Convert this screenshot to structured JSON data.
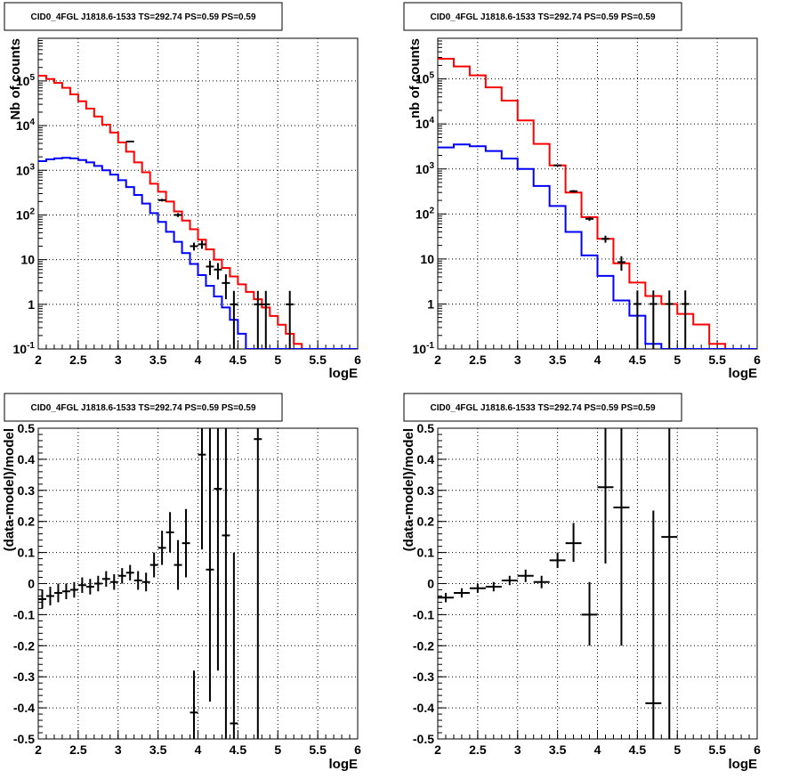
{
  "panels": [
    {
      "title": "CID0_4FGL J1818.6-1533 TS=292.74 PS=0.59 PS=0.59",
      "xlabel": "logE",
      "ylabel": "Nb of counts"
    },
    {
      "title": "CID0_4FGL J1818.6-1533 TS=292.74 PS=0.59 PS=0.59",
      "xlabel": "logE",
      "ylabel": "nb of counts"
    },
    {
      "title": "CID0_4FGL J1818.6-1533 TS=292.74 PS=0.59 PS=0.59",
      "xlabel": "logE",
      "ylabel": "(data-model)/model"
    },
    {
      "title": "CID0_4FGL J1818.6-1533 TS=292.74 PS=0.59 PS=0.59",
      "xlabel": "logE",
      "ylabel": "(data-model)/model"
    }
  ],
  "colors": {
    "total_model": "#ff0000",
    "component_model": "#0000ff",
    "data": "#000000",
    "grid": "#000000"
  },
  "chart_data": [
    {
      "type": "line",
      "title": "CID0_4FGL J1818.6-1533 TS=292.74 PS=0.59 PS=0.59",
      "xlabel": "logE",
      "ylabel": "Nb of counts",
      "xlim": [
        2,
        6
      ],
      "ylim": [
        0.1,
        900000
      ],
      "yscale": "log",
      "grid": true,
      "x_ticks": [
        "2",
        "2.5",
        "3",
        "3.5",
        "4",
        "4.5",
        "5",
        "5.5",
        "6"
      ],
      "y_ticks": [
        "10^-1",
        "1",
        "10",
        "10^2",
        "10^3",
        "10^4",
        "10^5"
      ],
      "bin_edges": [
        2.0,
        2.1,
        2.2,
        2.3,
        2.4,
        2.5,
        2.6,
        2.7,
        2.8,
        2.9,
        3.0,
        3.1,
        3.2,
        3.3,
        3.4,
        3.5,
        3.6,
        3.7,
        3.8,
        3.9,
        4.0,
        4.1,
        4.2,
        4.3,
        4.4,
        4.5,
        4.6,
        4.7,
        4.8,
        4.9,
        5.0,
        5.1,
        5.2,
        5.3,
        5.4,
        5.5,
        5.6,
        5.7,
        5.8,
        5.9,
        6.0
      ],
      "series": [
        {
          "style": "step",
          "color": "red",
          "values": [
            130000,
            110000,
            90000,
            70000,
            50000,
            35000,
            24000,
            16000,
            10500,
            7000,
            4200,
            2600,
            1500,
            900,
            500,
            330,
            200,
            120,
            75,
            48,
            28,
            17,
            10,
            6.5,
            4.2,
            2.8,
            1.9,
            1.3,
            0.85,
            0.55,
            0.35,
            0.22,
            0.13,
            0.1,
            0.1,
            0.1,
            0.1,
            0.1,
            0.1,
            0.1
          ]
        },
        {
          "style": "step",
          "color": "blue",
          "values": [
            1600,
            1750,
            1850,
            1900,
            1850,
            1700,
            1500,
            1250,
            1000,
            800,
            600,
            420,
            280,
            180,
            110,
            70,
            42,
            25,
            14,
            8,
            4.5,
            2.6,
            1.5,
            0.85,
            0.45,
            0.22,
            0.1,
            0.1,
            0.1,
            0.1,
            0.1,
            0.1,
            0.1,
            0.1,
            0.1,
            0.1,
            0.1,
            0.1,
            0.1,
            0.1
          ]
        },
        {
          "style": "errorbar",
          "color": "black",
          "points": [
            {
              "x": 3.15,
              "y": 4400,
              "lo": 4260,
              "hi": 4540
            },
            {
              "x": 3.55,
              "y": 215,
              "lo": 200,
              "hi": 230
            },
            {
              "x": 3.75,
              "y": 100,
              "lo": 90,
              "hi": 110
            },
            {
              "x": 3.95,
              "y": 20,
              "lo": 16,
              "hi": 24
            },
            {
              "x": 4.05,
              "y": 22,
              "lo": 17.5,
              "hi": 26.5
            },
            {
              "x": 4.15,
              "y": 7,
              "lo": 4.5,
              "hi": 9.5
            },
            {
              "x": 4.25,
              "y": 6,
              "lo": 3.6,
              "hi": 8.4
            },
            {
              "x": 4.35,
              "y": 3,
              "lo": 1.3,
              "hi": 4.7
            },
            {
              "x": 4.45,
              "y": 1,
              "lo": 0.1,
              "hi": 2
            },
            {
              "x": 4.75,
              "y": 1,
              "lo": 0.1,
              "hi": 2
            },
            {
              "x": 4.85,
              "y": 1,
              "lo": 0.1,
              "hi": 2
            },
            {
              "x": 5.15,
              "y": 1,
              "lo": 0.1,
              "hi": 2
            }
          ]
        }
      ]
    },
    {
      "type": "line",
      "title": "CID0_4FGL J1818.6-1533 TS=292.74 PS=0.59 PS=0.59",
      "xlabel": "logE",
      "ylabel": "nb of counts",
      "xlim": [
        2,
        6
      ],
      "ylim": [
        0.1,
        800000
      ],
      "yscale": "log",
      "grid": true,
      "x_ticks": [
        "2",
        "2.5",
        "3",
        "3.5",
        "4",
        "4.5",
        "5",
        "5.5",
        "6"
      ],
      "y_ticks": [
        "10^-1",
        "1",
        "10",
        "10^2",
        "10^3",
        "10^4",
        "10^5"
      ],
      "bin_edges": [
        2.0,
        2.2,
        2.4,
        2.6,
        2.8,
        3.0,
        3.2,
        3.4,
        3.6,
        3.8,
        4.0,
        4.2,
        4.4,
        4.6,
        4.8,
        5.0,
        5.2,
        5.4,
        5.6,
        5.8,
        6.0
      ],
      "series": [
        {
          "style": "step",
          "color": "red",
          "values": [
            280000,
            190000,
            120000,
            65000,
            33000,
            12000,
            3600,
            1200,
            300,
            85,
            28,
            8,
            3,
            1.5,
            1.0,
            0.6,
            0.35,
            0.13,
            0.1,
            0.1
          ]
        },
        {
          "style": "step",
          "color": "blue",
          "values": [
            3000,
            3500,
            3200,
            2500,
            1700,
            1000,
            420,
            150,
            40,
            12,
            4.2,
            1.2,
            0.55,
            0.13,
            0.1,
            0.1,
            0.1,
            0.1,
            0.1,
            0.1
          ]
        },
        {
          "style": "errorbar",
          "color": "black",
          "points": [
            {
              "x": 3.5,
              "y": 1200,
              "lo": 1160,
              "hi": 1240
            },
            {
              "x": 3.7,
              "y": 320,
              "lo": 300,
              "hi": 340
            },
            {
              "x": 3.9,
              "y": 78,
              "lo": 70,
              "hi": 86
            },
            {
              "x": 4.1,
              "y": 28,
              "lo": 23,
              "hi": 33
            },
            {
              "x": 4.3,
              "y": 8.5,
              "lo": 5.5,
              "hi": 11.5
            },
            {
              "x": 4.5,
              "y": 1,
              "lo": 0.1,
              "hi": 2
            },
            {
              "x": 4.7,
              "y": 1,
              "lo": 0.1,
              "hi": 2
            },
            {
              "x": 4.9,
              "y": 1,
              "lo": 0.1,
              "hi": 2
            },
            {
              "x": 5.1,
              "y": 1,
              "lo": 0.1,
              "hi": 2
            }
          ]
        }
      ]
    },
    {
      "type": "scatter",
      "title": "CID0_4FGL J1818.6-1533 TS=292.74 PS=0.59 PS=0.59",
      "xlabel": "logE",
      "ylabel": "(data-model)/model",
      "xlim": [
        2,
        6
      ],
      "ylim": [
        -0.5,
        0.5
      ],
      "grid": true,
      "x_ticks": [
        "2",
        "2.5",
        "3",
        "3.5",
        "4",
        "4.5",
        "5",
        "5.5",
        "6"
      ],
      "y_ticks": [
        "-0.5",
        "-0.4",
        "-0.3",
        "-0.2",
        "-0.1",
        "0",
        "0.1",
        "0.2",
        "0.3",
        "0.4",
        "0.5"
      ],
      "bin_width": 0.1,
      "points": [
        {
          "x": 2.05,
          "y": -0.05,
          "lo": -0.08,
          "hi": -0.02
        },
        {
          "x": 2.15,
          "y": -0.04,
          "lo": -0.07,
          "hi": -0.01
        },
        {
          "x": 2.25,
          "y": -0.03,
          "lo": -0.06,
          "hi": 0.0
        },
        {
          "x": 2.35,
          "y": -0.025,
          "lo": -0.05,
          "hi": 0.0
        },
        {
          "x": 2.45,
          "y": -0.02,
          "lo": -0.045,
          "hi": 0.005
        },
        {
          "x": 2.55,
          "y": -0.005,
          "lo": -0.03,
          "hi": 0.02
        },
        {
          "x": 2.65,
          "y": -0.01,
          "lo": -0.035,
          "hi": 0.015
        },
        {
          "x": 2.75,
          "y": 0.0,
          "lo": -0.025,
          "hi": 0.025
        },
        {
          "x": 2.85,
          "y": 0.015,
          "lo": -0.01,
          "hi": 0.04
        },
        {
          "x": 2.95,
          "y": 0.005,
          "lo": -0.02,
          "hi": 0.03
        },
        {
          "x": 3.05,
          "y": 0.025,
          "lo": 0.0,
          "hi": 0.05
        },
        {
          "x": 3.15,
          "y": 0.035,
          "lo": 0.01,
          "hi": 0.06
        },
        {
          "x": 3.25,
          "y": 0.01,
          "lo": -0.02,
          "hi": 0.04
        },
        {
          "x": 3.35,
          "y": 0.005,
          "lo": -0.025,
          "hi": 0.035
        },
        {
          "x": 3.45,
          "y": 0.06,
          "lo": 0.02,
          "hi": 0.1
        },
        {
          "x": 3.55,
          "y": 0.115,
          "lo": 0.06,
          "hi": 0.17
        },
        {
          "x": 3.65,
          "y": 0.165,
          "lo": 0.1,
          "hi": 0.23
        },
        {
          "x": 3.75,
          "y": 0.06,
          "lo": -0.02,
          "hi": 0.14
        },
        {
          "x": 3.85,
          "y": 0.13,
          "lo": 0.02,
          "hi": 0.24
        },
        {
          "x": 3.95,
          "y": -0.415,
          "lo": -0.5,
          "hi": -0.28
        },
        {
          "x": 4.05,
          "y": 0.415,
          "lo": 0.11,
          "hi": 0.5
        },
        {
          "x": 4.15,
          "y": 0.045,
          "lo": -0.38,
          "hi": 0.5
        },
        {
          "x": 4.25,
          "y": 0.305,
          "lo": -0.28,
          "hi": 0.5
        },
        {
          "x": 4.35,
          "y": 0.155,
          "lo": -0.5,
          "hi": 0.5
        },
        {
          "x": 4.45,
          "y": -0.45,
          "lo": -0.5,
          "hi": 0.1
        },
        {
          "x": 4.75,
          "y": 0.465,
          "lo": -0.5,
          "hi": 0.5
        }
      ]
    },
    {
      "type": "scatter",
      "title": "CID0_4FGL J1818.6-1533 TS=292.74 PS=0.59 PS=0.59",
      "xlabel": "logE",
      "ylabel": "(data-model)/model",
      "xlim": [
        2,
        6
      ],
      "ylim": [
        -0.5,
        0.5
      ],
      "grid": true,
      "x_ticks": [
        "2",
        "2.5",
        "3",
        "3.5",
        "4",
        "4.5",
        "5",
        "5.5",
        "6"
      ],
      "y_ticks": [
        "-0.5",
        "-0.4",
        "-0.3",
        "-0.2",
        "-0.1",
        "0",
        "0.1",
        "0.2",
        "0.3",
        "0.4",
        "0.5"
      ],
      "bin_width": 0.2,
      "points": [
        {
          "x": 2.1,
          "y": -0.045,
          "lo": -0.06,
          "hi": -0.03
        },
        {
          "x": 2.3,
          "y": -0.03,
          "lo": -0.045,
          "hi": -0.015
        },
        {
          "x": 2.5,
          "y": -0.015,
          "lo": -0.03,
          "hi": 0.0
        },
        {
          "x": 2.7,
          "y": -0.01,
          "lo": -0.025,
          "hi": 0.005
        },
        {
          "x": 2.9,
          "y": 0.01,
          "lo": -0.005,
          "hi": 0.025
        },
        {
          "x": 3.1,
          "y": 0.025,
          "lo": 0.005,
          "hi": 0.045
        },
        {
          "x": 3.3,
          "y": 0.005,
          "lo": -0.015,
          "hi": 0.025
        },
        {
          "x": 3.5,
          "y": 0.075,
          "lo": 0.05,
          "hi": 0.1
        },
        {
          "x": 3.7,
          "y": 0.13,
          "lo": 0.07,
          "hi": 0.195
        },
        {
          "x": 3.9,
          "y": -0.1,
          "lo": -0.2,
          "hi": 0.005
        },
        {
          "x": 4.1,
          "y": 0.31,
          "lo": 0.065,
          "hi": 0.5
        },
        {
          "x": 4.3,
          "y": 0.245,
          "lo": -0.2,
          "hi": 0.5
        },
        {
          "x": 4.7,
          "y": -0.385,
          "lo": -0.5,
          "hi": 0.235
        },
        {
          "x": 4.9,
          "y": 0.15,
          "lo": -0.5,
          "hi": 0.5
        }
      ]
    }
  ]
}
